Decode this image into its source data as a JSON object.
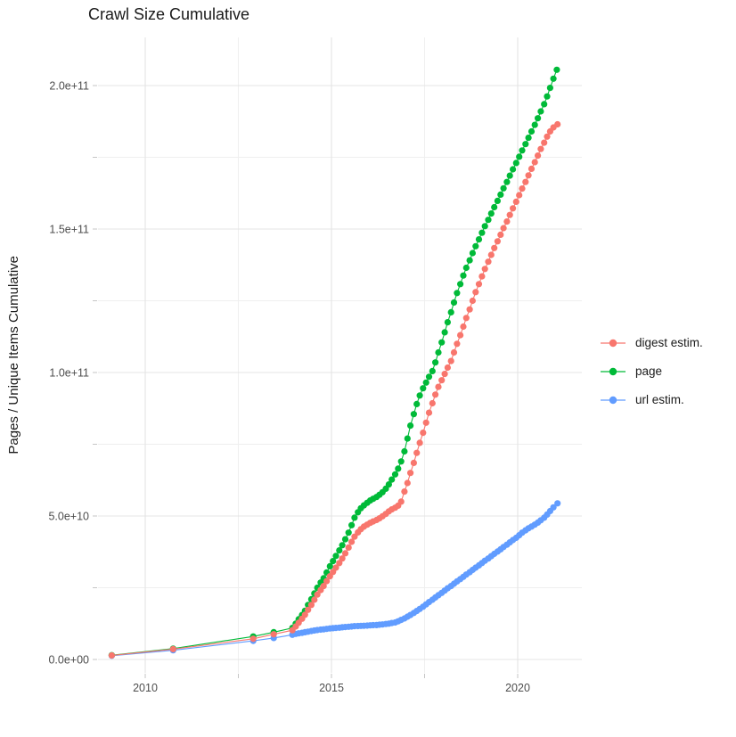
{
  "title": "Crawl Size Cumulative",
  "y_axis": {
    "title": "Pages / Unique Items Cumulative"
  },
  "chart_data": {
    "type": "scatter",
    "title": "Crawl Size Cumulative",
    "xlabel": "",
    "ylabel": "Pages / Unique Items Cumulative",
    "value_unit": "items, values stored in billions (1e9)",
    "xlim": [
      2008.7,
      2021.7
    ],
    "ylim_billions": [
      0,
      215
    ],
    "grid": true,
    "legend_position": "right",
    "x_ticks": [
      {
        "label": "2010",
        "year": 2010
      },
      {
        "label": "2015",
        "year": 2015
      },
      {
        "label": "2020",
        "year": 2020
      }
    ],
    "x_minor_ticks": [
      2012.5,
      2017.5
    ],
    "y_ticks": [
      {
        "label": "0.0e+00",
        "value_billions": 0
      },
      {
        "label": "5.0e+10",
        "value_billions": 50
      },
      {
        "label": "1.0e+11",
        "value_billions": 100
      },
      {
        "label": "1.5e+11",
        "value_billions": 150
      },
      {
        "label": "2.0e+11",
        "value_billions": 200
      }
    ],
    "y_minor_ticks_billions": [
      25,
      75,
      125,
      175
    ],
    "series": [
      {
        "name": "digest estim.",
        "color": "#F8766D",
        "points": [
          [
            2009.1,
            1.4
          ],
          [
            2010.75,
            3.6
          ],
          [
            2012.9,
            7.2
          ],
          [
            2013.45,
            8.8
          ],
          [
            2013.95,
            10.2
          ],
          [
            2014.04,
            11.5
          ],
          [
            2014.12,
            12.8
          ],
          [
            2014.21,
            14.2
          ],
          [
            2014.29,
            15.6
          ],
          [
            2014.37,
            17.3
          ],
          [
            2014.46,
            19
          ],
          [
            2014.54,
            20.8
          ],
          [
            2014.62,
            22.6
          ],
          [
            2014.71,
            24.2
          ],
          [
            2014.79,
            25.6
          ],
          [
            2014.87,
            27.3
          ],
          [
            2014.96,
            29
          ],
          [
            2015.04,
            30.5
          ],
          [
            2015.12,
            32
          ],
          [
            2015.21,
            33.6
          ],
          [
            2015.29,
            35.2
          ],
          [
            2015.37,
            37
          ],
          [
            2015.46,
            39
          ],
          [
            2015.54,
            41
          ],
          [
            2015.62,
            42.8
          ],
          [
            2015.71,
            44.3
          ],
          [
            2015.79,
            45.4
          ],
          [
            2015.87,
            46.3
          ],
          [
            2015.96,
            47
          ],
          [
            2016.04,
            47.6
          ],
          [
            2016.12,
            48.1
          ],
          [
            2016.21,
            48.6
          ],
          [
            2016.29,
            49.2
          ],
          [
            2016.37,
            49.9
          ],
          [
            2016.46,
            50.7
          ],
          [
            2016.54,
            51.6
          ],
          [
            2016.62,
            52.3
          ],
          [
            2016.71,
            52.9
          ],
          [
            2016.79,
            53.6
          ],
          [
            2016.87,
            55
          ],
          [
            2016.96,
            58.5
          ],
          [
            2017.04,
            61.5
          ],
          [
            2017.12,
            65
          ],
          [
            2017.21,
            68.5
          ],
          [
            2017.29,
            72
          ],
          [
            2017.37,
            75.5
          ],
          [
            2017.46,
            79
          ],
          [
            2017.54,
            82.5
          ],
          [
            2017.62,
            86
          ],
          [
            2017.71,
            89.3
          ],
          [
            2017.79,
            92.3
          ],
          [
            2017.87,
            95
          ],
          [
            2017.96,
            97.3
          ],
          [
            2018.04,
            99.5
          ],
          [
            2018.12,
            101.7
          ],
          [
            2018.21,
            104
          ],
          [
            2018.29,
            107
          ],
          [
            2018.37,
            110
          ],
          [
            2018.46,
            113
          ],
          [
            2018.54,
            116
          ],
          [
            2018.62,
            119
          ],
          [
            2018.71,
            122
          ],
          [
            2018.79,
            125
          ],
          [
            2018.87,
            128
          ],
          [
            2018.96,
            130.8
          ],
          [
            2019.04,
            133.5
          ],
          [
            2019.12,
            136.1
          ],
          [
            2019.21,
            138.6
          ],
          [
            2019.29,
            141
          ],
          [
            2019.37,
            143.4
          ],
          [
            2019.46,
            145.7
          ],
          [
            2019.54,
            148
          ],
          [
            2019.62,
            150.3
          ],
          [
            2019.71,
            152.6
          ],
          [
            2019.79,
            154.9
          ],
          [
            2019.87,
            157.2
          ],
          [
            2019.96,
            159.5
          ],
          [
            2020.04,
            161.8
          ],
          [
            2020.12,
            164.1
          ],
          [
            2020.21,
            166.4
          ],
          [
            2020.29,
            168.7
          ],
          [
            2020.37,
            171
          ],
          [
            2020.46,
            173.3
          ],
          [
            2020.54,
            175.6
          ],
          [
            2020.62,
            177.9
          ],
          [
            2020.71,
            180.1
          ],
          [
            2020.79,
            182.2
          ],
          [
            2020.87,
            184
          ],
          [
            2020.96,
            185.4
          ],
          [
            2021.07,
            186.5
          ]
        ]
      },
      {
        "name": "page",
        "color": "#00BA38",
        "points": [
          [
            2009.1,
            1.5
          ],
          [
            2010.75,
            3.8
          ],
          [
            2012.9,
            8
          ],
          [
            2013.45,
            9.5
          ],
          [
            2013.95,
            11
          ],
          [
            2014.04,
            12.5
          ],
          [
            2014.12,
            14
          ],
          [
            2014.21,
            15.5
          ],
          [
            2014.29,
            17
          ],
          [
            2014.37,
            19
          ],
          [
            2014.46,
            21
          ],
          [
            2014.54,
            23
          ],
          [
            2014.62,
            25
          ],
          [
            2014.71,
            26.8
          ],
          [
            2014.79,
            28.3
          ],
          [
            2014.87,
            30.3
          ],
          [
            2014.96,
            32.5
          ],
          [
            2015.04,
            34.3
          ],
          [
            2015.12,
            36.1
          ],
          [
            2015.21,
            38
          ],
          [
            2015.29,
            39.8
          ],
          [
            2015.37,
            41.9
          ],
          [
            2015.46,
            44.2
          ],
          [
            2015.54,
            46.8
          ],
          [
            2015.62,
            49.4
          ],
          [
            2015.71,
            51.3
          ],
          [
            2015.79,
            52.7
          ],
          [
            2015.87,
            53.7
          ],
          [
            2015.96,
            54.6
          ],
          [
            2016.04,
            55.4
          ],
          [
            2016.12,
            56
          ],
          [
            2016.21,
            56.6
          ],
          [
            2016.29,
            57.4
          ],
          [
            2016.37,
            58.3
          ],
          [
            2016.46,
            59.5
          ],
          [
            2016.54,
            61
          ],
          [
            2016.62,
            62.7
          ],
          [
            2016.71,
            64.5
          ],
          [
            2016.79,
            66.5
          ],
          [
            2016.87,
            69
          ],
          [
            2016.96,
            72.5
          ],
          [
            2017.04,
            77
          ],
          [
            2017.12,
            81.5
          ],
          [
            2017.21,
            85.5
          ],
          [
            2017.29,
            89
          ],
          [
            2017.37,
            92
          ],
          [
            2017.46,
            94.5
          ],
          [
            2017.54,
            96.5
          ],
          [
            2017.62,
            98.5
          ],
          [
            2017.71,
            100.5
          ],
          [
            2017.79,
            103.5
          ],
          [
            2017.87,
            107
          ],
          [
            2017.96,
            110.5
          ],
          [
            2018.04,
            114
          ],
          [
            2018.12,
            117.5
          ],
          [
            2018.21,
            121
          ],
          [
            2018.29,
            124.4
          ],
          [
            2018.37,
            127.7
          ],
          [
            2018.46,
            130.8
          ],
          [
            2018.54,
            133.8
          ],
          [
            2018.62,
            136.5
          ],
          [
            2018.71,
            139.1
          ],
          [
            2018.79,
            141.6
          ],
          [
            2018.87,
            144
          ],
          [
            2018.96,
            146.4
          ],
          [
            2019.04,
            148.7
          ],
          [
            2019.12,
            151
          ],
          [
            2019.21,
            153.2
          ],
          [
            2019.29,
            155.4
          ],
          [
            2019.37,
            157.6
          ],
          [
            2019.46,
            159.8
          ],
          [
            2019.54,
            162
          ],
          [
            2019.62,
            164.2
          ],
          [
            2019.71,
            166.4
          ],
          [
            2019.79,
            168.6
          ],
          [
            2019.87,
            170.8
          ],
          [
            2019.96,
            173
          ],
          [
            2020.04,
            175.2
          ],
          [
            2020.12,
            177.4
          ],
          [
            2020.21,
            179.6
          ],
          [
            2020.29,
            181.8
          ],
          [
            2020.37,
            184
          ],
          [
            2020.46,
            186.3
          ],
          [
            2020.54,
            188.6
          ],
          [
            2020.62,
            191
          ],
          [
            2020.71,
            193.5
          ],
          [
            2020.79,
            196.2
          ],
          [
            2020.87,
            199.2
          ],
          [
            2020.96,
            202.4
          ],
          [
            2021.05,
            205.5
          ]
        ]
      },
      {
        "name": "url estim.",
        "color": "#619CFF",
        "points": [
          [
            2009.1,
            1.3
          ],
          [
            2010.75,
            3.2
          ],
          [
            2012.9,
            6.5
          ],
          [
            2013.45,
            7.5
          ],
          [
            2013.95,
            8.6
          ],
          [
            2014.04,
            8.9
          ],
          [
            2014.12,
            9.1
          ],
          [
            2014.21,
            9.3
          ],
          [
            2014.29,
            9.5
          ],
          [
            2014.37,
            9.7
          ],
          [
            2014.46,
            9.9
          ],
          [
            2014.54,
            10.1
          ],
          [
            2014.62,
            10.25
          ],
          [
            2014.71,
            10.4
          ],
          [
            2014.79,
            10.5
          ],
          [
            2014.87,
            10.65
          ],
          [
            2014.96,
            10.8
          ],
          [
            2015.04,
            10.9
          ],
          [
            2015.12,
            11
          ],
          [
            2015.21,
            11.1
          ],
          [
            2015.29,
            11.2
          ],
          [
            2015.37,
            11.3
          ],
          [
            2015.46,
            11.4
          ],
          [
            2015.54,
            11.5
          ],
          [
            2015.62,
            11.6
          ],
          [
            2015.71,
            11.65
          ],
          [
            2015.79,
            11.7
          ],
          [
            2015.87,
            11.75
          ],
          [
            2015.96,
            11.8
          ],
          [
            2016.04,
            11.9
          ],
          [
            2016.12,
            11.95
          ],
          [
            2016.21,
            12
          ],
          [
            2016.29,
            12.1
          ],
          [
            2016.37,
            12.2
          ],
          [
            2016.46,
            12.35
          ],
          [
            2016.54,
            12.5
          ],
          [
            2016.62,
            12.7
          ],
          [
            2016.71,
            12.9
          ],
          [
            2016.79,
            13.3
          ],
          [
            2016.87,
            13.8
          ],
          [
            2016.96,
            14.3
          ],
          [
            2017.04,
            14.9
          ],
          [
            2017.12,
            15.5
          ],
          [
            2017.21,
            16.2
          ],
          [
            2017.29,
            16.9
          ],
          [
            2017.37,
            17.6
          ],
          [
            2017.46,
            18.4
          ],
          [
            2017.54,
            19.2
          ],
          [
            2017.62,
            20
          ],
          [
            2017.71,
            20.8
          ],
          [
            2017.79,
            21.6
          ],
          [
            2017.87,
            22.4
          ],
          [
            2017.96,
            23.2
          ],
          [
            2018.04,
            24
          ],
          [
            2018.12,
            24.8
          ],
          [
            2018.21,
            25.6
          ],
          [
            2018.29,
            26.4
          ],
          [
            2018.37,
            27.2
          ],
          [
            2018.46,
            28
          ],
          [
            2018.54,
            28.8
          ],
          [
            2018.62,
            29.6
          ],
          [
            2018.71,
            30.4
          ],
          [
            2018.79,
            31.2
          ],
          [
            2018.87,
            32
          ],
          [
            2018.96,
            32.8
          ],
          [
            2019.04,
            33.6
          ],
          [
            2019.12,
            34.4
          ],
          [
            2019.21,
            35.2
          ],
          [
            2019.29,
            36
          ],
          [
            2019.37,
            36.8
          ],
          [
            2019.46,
            37.6
          ],
          [
            2019.54,
            38.4
          ],
          [
            2019.62,
            39.2
          ],
          [
            2019.71,
            40
          ],
          [
            2019.79,
            40.8
          ],
          [
            2019.87,
            41.6
          ],
          [
            2019.96,
            42.4
          ],
          [
            2020.04,
            43.3
          ],
          [
            2020.12,
            44.2
          ],
          [
            2020.21,
            45
          ],
          [
            2020.29,
            45.7
          ],
          [
            2020.37,
            46.3
          ],
          [
            2020.46,
            47
          ],
          [
            2020.54,
            47.7
          ],
          [
            2020.62,
            48.5
          ],
          [
            2020.71,
            49.4
          ],
          [
            2020.79,
            50.5
          ],
          [
            2020.87,
            51.7
          ],
          [
            2020.96,
            53
          ],
          [
            2021.07,
            54.4
          ]
        ]
      }
    ]
  }
}
